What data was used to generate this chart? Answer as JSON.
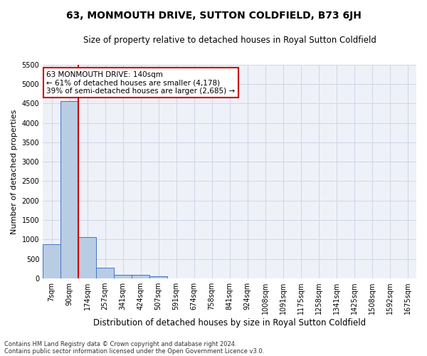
{
  "title": "63, MONMOUTH DRIVE, SUTTON COLDFIELD, B73 6JH",
  "subtitle": "Size of property relative to detached houses in Royal Sutton Coldfield",
  "xlabel": "Distribution of detached houses by size in Royal Sutton Coldfield",
  "ylabel": "Number of detached properties",
  "footnote1": "Contains HM Land Registry data © Crown copyright and database right 2024.",
  "footnote2": "Contains public sector information licensed under the Open Government Licence v3.0.",
  "annotation_title": "63 MONMOUTH DRIVE: 140sqm",
  "annotation_line1": "← 61% of detached houses are smaller (4,178)",
  "annotation_line2": "39% of semi-detached houses are larger (2,685) →",
  "bar_color": "#b8cce4",
  "bar_edge_color": "#4472c4",
  "redline_color": "#cc0000",
  "bin_labels": [
    "7sqm",
    "90sqm",
    "174sqm",
    "257sqm",
    "341sqm",
    "424sqm",
    "507sqm",
    "591sqm",
    "674sqm",
    "758sqm",
    "841sqm",
    "924sqm",
    "1008sqm",
    "1091sqm",
    "1175sqm",
    "1258sqm",
    "1341sqm",
    "1425sqm",
    "1508sqm",
    "1592sqm",
    "1675sqm"
  ],
  "bar_values": [
    880,
    4560,
    1060,
    280,
    95,
    90,
    50,
    0,
    0,
    0,
    0,
    0,
    0,
    0,
    0,
    0,
    0,
    0,
    0,
    0,
    0
  ],
  "property_size_bin": 1.5,
  "ylim": [
    0,
    5500
  ],
  "yticks": [
    0,
    500,
    1000,
    1500,
    2000,
    2500,
    3000,
    3500,
    4000,
    4500,
    5000,
    5500
  ],
  "grid_color": "#d0d8e8",
  "background_color": "#eef2f8",
  "annotation_box_color": "#ffffff",
  "annotation_box_edge": "#cc0000",
  "title_fontsize": 10,
  "subtitle_fontsize": 8.5,
  "xlabel_fontsize": 8.5,
  "ylabel_fontsize": 8,
  "footnote_fontsize": 6,
  "tick_fontsize": 7
}
